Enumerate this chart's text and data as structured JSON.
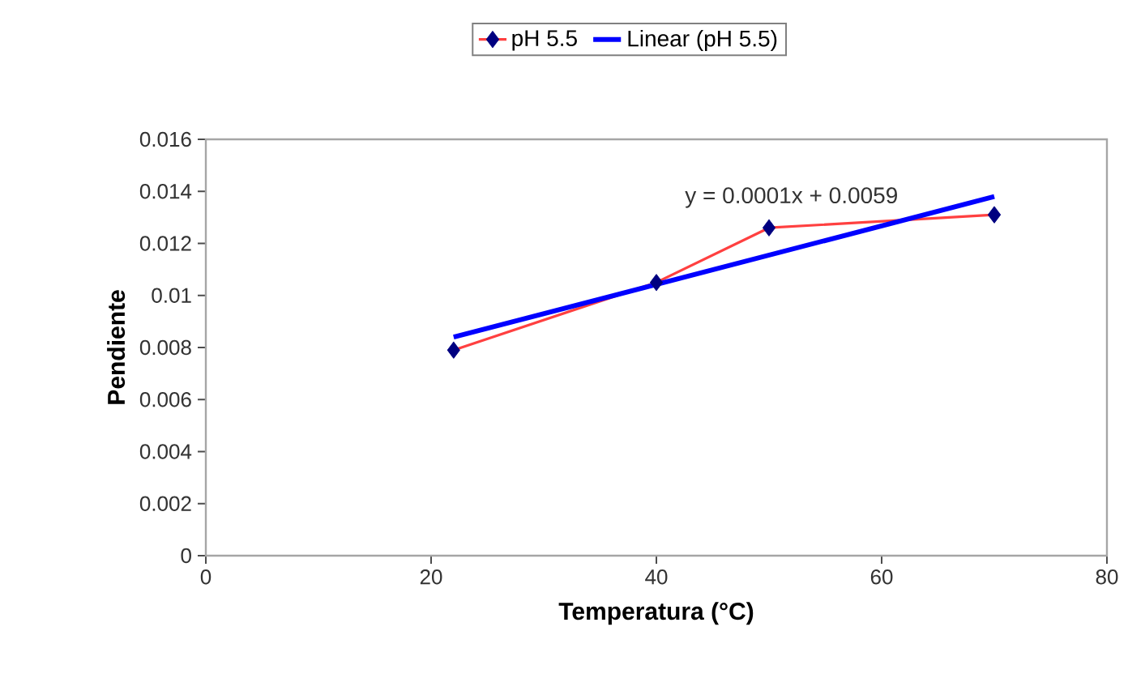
{
  "chart_data": {
    "type": "line",
    "xlabel": "Temperatura (°C)",
    "ylabel": "Pendiente",
    "x": [
      22,
      40,
      50,
      70
    ],
    "series": [
      {
        "name": "pH 5.5",
        "color": "#ff4040",
        "marker": "diamond",
        "values": [
          0.0079,
          0.0105,
          0.0126,
          0.0131
        ]
      },
      {
        "name": "Linear (pH 5.5)",
        "color": "#0000ff",
        "marker": "none",
        "x": [
          22,
          70
        ],
        "values": [
          0.0084,
          0.0138
        ]
      }
    ],
    "xlim": [
      0,
      80
    ],
    "xticks": [
      0,
      20,
      40,
      60,
      80
    ],
    "ylim": [
      0,
      0.016
    ],
    "yticks": [
      0,
      0.002,
      0.004,
      0.006,
      0.008,
      0.01,
      0.012,
      0.014,
      0.016
    ],
    "annotations": [
      "y = 0.0001x + 0.0059"
    ],
    "legend": "top",
    "grid": false
  }
}
